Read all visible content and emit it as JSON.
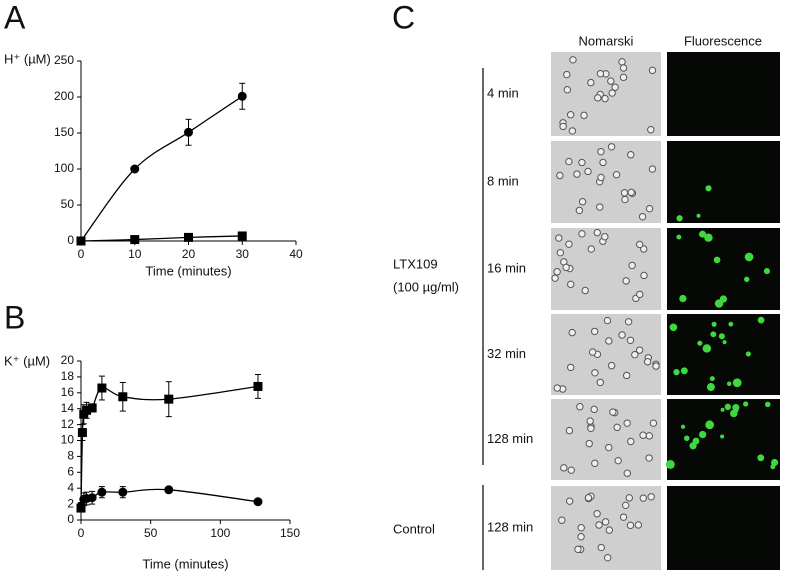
{
  "chart_data": [
    {
      "type": "line",
      "panel": "A",
      "y_label": "H⁺ (µM)",
      "x_label": "Time (minutes)",
      "xlim": [
        0,
        40
      ],
      "xticks": [
        0,
        10,
        20,
        30,
        40
      ],
      "ylim": [
        0,
        250
      ],
      "yticks": [
        0,
        50,
        100,
        150,
        200,
        250
      ],
      "series": [
        {
          "marker": "circle",
          "color": "#000000",
          "x": [
            0,
            10,
            20,
            30
          ],
          "values": [
            0,
            100,
            151,
            201
          ],
          "errors": [
            0,
            3,
            18,
            18
          ]
        },
        {
          "marker": "square",
          "color": "#000000",
          "x": [
            0,
            10,
            20,
            30
          ],
          "values": [
            0,
            2,
            5,
            7
          ],
          "errors": [
            0,
            1,
            2,
            2
          ]
        }
      ]
    },
    {
      "type": "line",
      "panel": "B",
      "y_label": "K⁺ (µM)",
      "x_label": "Time (minutes)",
      "xlim": [
        0,
        150
      ],
      "xticks": [
        0,
        50,
        100,
        150
      ],
      "ylim": [
        0,
        20
      ],
      "yticks": [
        0,
        2,
        4,
        6,
        8,
        10,
        12,
        14,
        16,
        18,
        20
      ],
      "series": [
        {
          "marker": "square",
          "color": "#000000",
          "x": [
            0,
            1,
            2,
            4,
            8,
            15,
            30,
            63,
            127
          ],
          "values": [
            1.5,
            11,
            13.3,
            13.8,
            14.1,
            16.6,
            15.5,
            15.2,
            16.8
          ],
          "errors": [
            0.3,
            1,
            1.2,
            1,
            0.5,
            1.5,
            1.8,
            2.2,
            1.5
          ]
        },
        {
          "marker": "circle",
          "color": "#000000",
          "x": [
            0,
            2,
            4,
            8,
            15,
            30,
            63,
            127
          ],
          "values": [
            1.7,
            2.6,
            2.7,
            2.8,
            3.5,
            3.5,
            3.8,
            2.3
          ],
          "errors": [
            0.5,
            0.8,
            0.8,
            0.8,
            0.7,
            0.7,
            0.2,
            0.2
          ]
        }
      ]
    }
  ],
  "panel_c": {
    "panel": "C",
    "columns": [
      "Nomarski",
      "Fluorescence"
    ],
    "times": [
      "4 min",
      "8 min",
      "16 min",
      "32 min",
      "128 min",
      "128 min"
    ],
    "group": "LTX109",
    "concentration": "(100 µg/ml)",
    "control": "Control"
  }
}
